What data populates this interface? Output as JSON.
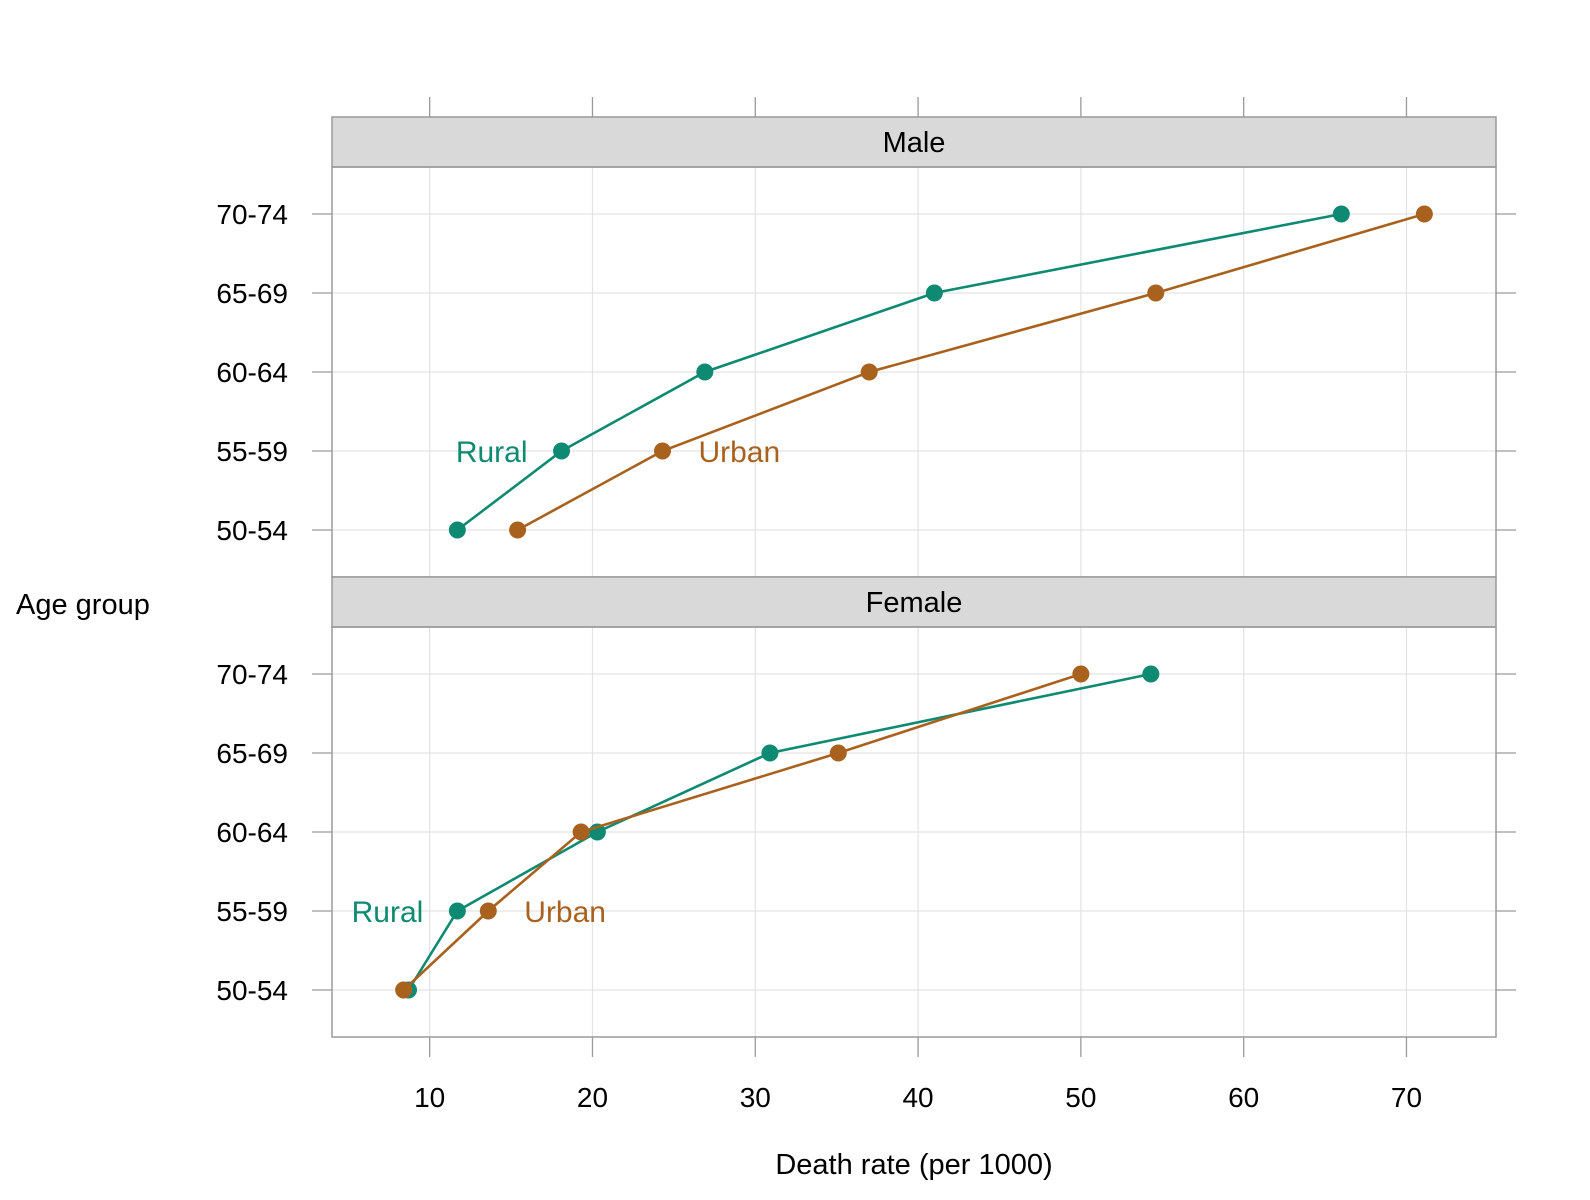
{
  "chart_data": {
    "type": "line",
    "xlabel": "Death rate (per 1000)",
    "ylabel": "Age group",
    "xlim": [
      4,
      75.5
    ],
    "x_ticks": [
      10,
      20,
      30,
      40,
      50,
      60,
      70
    ],
    "categories": [
      "50-54",
      "55-59",
      "60-64",
      "65-69",
      "70-74"
    ],
    "grid": true,
    "colors": {
      "Rural": "#0e8a73",
      "Urban": "#a8621e",
      "strip": "#d9d9d9"
    },
    "panels": [
      {
        "title": "Male",
        "series": [
          {
            "name": "Rural",
            "values": [
              11.7,
              18.1,
              26.9,
              41.0,
              66.0
            ],
            "label_at": "55-59"
          },
          {
            "name": "Urban",
            "values": [
              15.4,
              24.3,
              37.0,
              54.6,
              71.1
            ],
            "label_at": "55-59"
          }
        ]
      },
      {
        "title": "Female",
        "series": [
          {
            "name": "Rural",
            "values": [
              8.7,
              11.7,
              20.3,
              30.9,
              54.3
            ],
            "label_at": "55-59"
          },
          {
            "name": "Urban",
            "values": [
              8.4,
              13.6,
              19.3,
              35.1,
              50.0
            ],
            "label_at": "55-59"
          }
        ]
      }
    ]
  }
}
